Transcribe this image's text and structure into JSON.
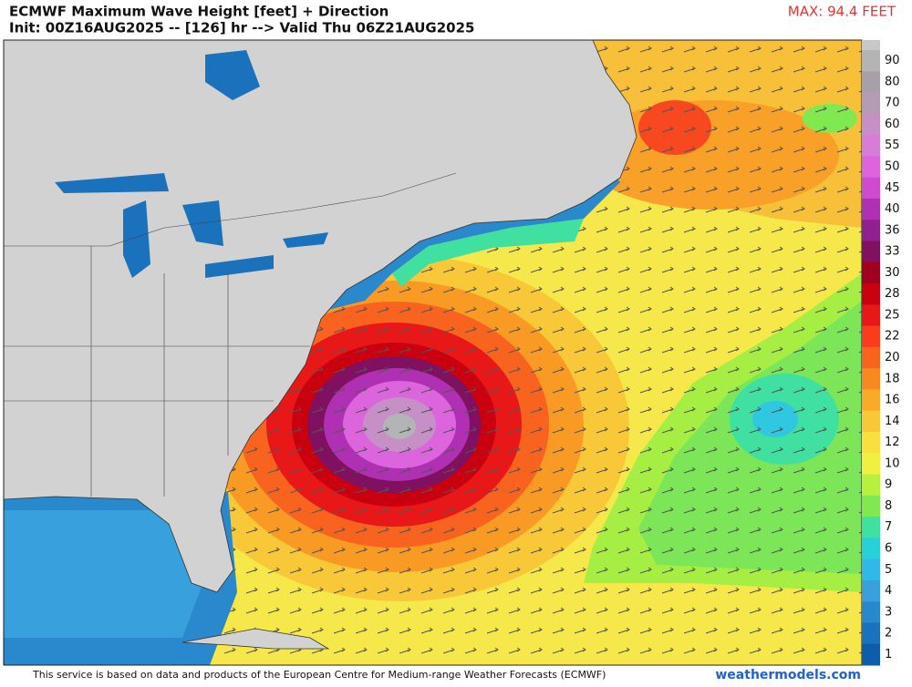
{
  "header": {
    "title": "ECMWF Maximum Wave Height [feet] + Direction",
    "subtitle": "Init: 00Z16AUG2025 -- [126] hr --> Valid Thu 06Z21AUG2025",
    "max_label": "MAX: 94.4 FEET"
  },
  "colorbar": [
    {
      "label": 90,
      "color": "#b4b4b4"
    },
    {
      "label": 80,
      "color": "#a8a0a8"
    },
    {
      "label": 70,
      "color": "#b49cb4"
    },
    {
      "label": 60,
      "color": "#c690c6"
    },
    {
      "label": 55,
      "color": "#d67ed6"
    },
    {
      "label": 50,
      "color": "#dc64dc"
    },
    {
      "label": 45,
      "color": "#d04ad0"
    },
    {
      "label": 40,
      "color": "#b030b4"
    },
    {
      "label": 36,
      "color": "#902090"
    },
    {
      "label": 33,
      "color": "#801060"
    },
    {
      "label": 30,
      "color": "#a00020"
    },
    {
      "label": 28,
      "color": "#c80010"
    },
    {
      "label": 25,
      "color": "#e81818"
    },
    {
      "label": 22,
      "color": "#f83c1c"
    },
    {
      "label": 20,
      "color": "#f86420"
    },
    {
      "label": 18,
      "color": "#f88820"
    },
    {
      "label": 16,
      "color": "#f8aa28"
    },
    {
      "label": 14,
      "color": "#f8c838"
    },
    {
      "label": 12,
      "color": "#f8e040"
    },
    {
      "label": 10,
      "color": "#f0f040"
    },
    {
      "label": 9,
      "color": "#b8f040"
    },
    {
      "label": 8,
      "color": "#80e850"
    },
    {
      "label": 7,
      "color": "#40e0a0"
    },
    {
      "label": 6,
      "color": "#28d0d8"
    },
    {
      "label": 5,
      "color": "#30b8e8"
    },
    {
      "label": 4,
      "color": "#38a0dc"
    },
    {
      "label": 3,
      "color": "#2888cc"
    },
    {
      "label": 2,
      "color": "#1a72bc"
    },
    {
      "label": 1,
      "color": "#0c5ea8"
    }
  ],
  "footer": {
    "attribution": "This service is based on data and products of the European Centre for Medium-range Weather Forecasts (ECMWF)",
    "site": "weathermodels.com"
  }
}
